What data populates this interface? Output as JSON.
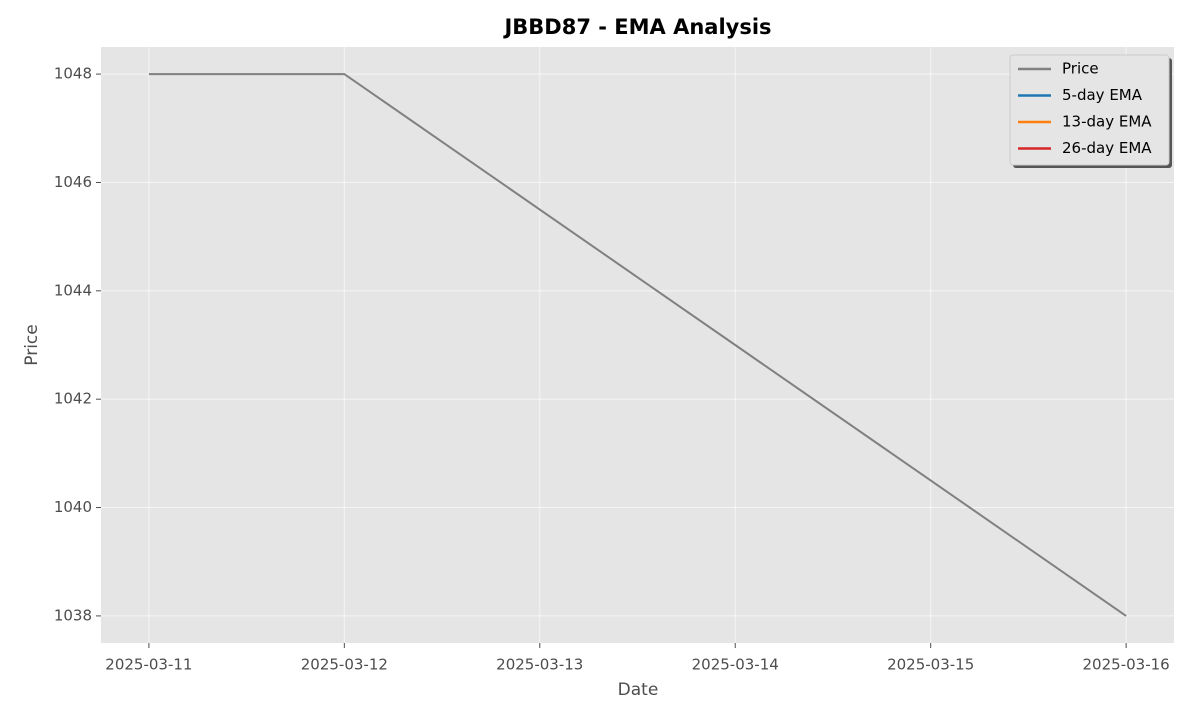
{
  "chart_data": {
    "type": "line",
    "title": "JBBD87 - EMA Analysis",
    "x_label": "Date",
    "y_label": "Price",
    "x": [
      "2025-03-11",
      "2025-03-12",
      "2025-03-13",
      "2025-03-14",
      "2025-03-15",
      "2025-03-16"
    ],
    "xticks": [
      "2025-03-11",
      "2025-03-12",
      "2025-03-13",
      "2025-03-14",
      "2025-03-15",
      "2025-03-16"
    ],
    "series": [
      {
        "name": "Price",
        "color": "#808080",
        "values": [
          1048,
          1048,
          1045.5,
          1043,
          1040.5,
          1038
        ]
      },
      {
        "name": "5-day EMA",
        "color": "#1f77b4",
        "values": [
          null,
          null,
          null,
          null,
          null,
          null
        ]
      },
      {
        "name": "13-day EMA",
        "color": "#ff7f0e",
        "values": [
          null,
          null,
          null,
          null,
          null,
          null
        ]
      },
      {
        "name": "26-day EMA",
        "color": "#d62728",
        "values": [
          null,
          null,
          null,
          null,
          null,
          null
        ]
      }
    ],
    "ylim": [
      1037.5,
      1048.5
    ],
    "yticks": [
      1038,
      1040,
      1042,
      1044,
      1046,
      1048
    ],
    "grid": true,
    "legend": "upper right"
  }
}
